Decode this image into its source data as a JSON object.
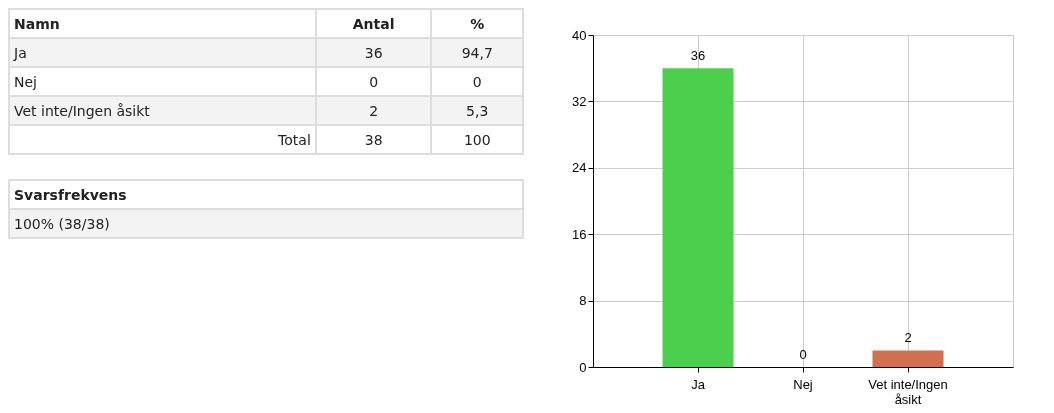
{
  "chart_data": [
    {
      "type": "other",
      "annotations": [
        "Namn",
        "Antal",
        "%",
        "Ja",
        "36",
        "94,7",
        "Nej",
        "0",
        "0",
        "Vet inte/Ingen åsikt",
        "2",
        "5,3",
        "Total",
        "38",
        "100",
        "Svarsfrekvens",
        "100% (38/38)"
      ]
    },
    {
      "type": "bar",
      "categories": [
        "Ja",
        "Nej",
        "Vet inte/Ingen åsikt"
      ],
      "values": [
        36,
        0,
        2
      ],
      "colors": [
        "#4ccf4c",
        "#4ccf4c",
        "#d0704f"
      ],
      "ylim": [
        0,
        40
      ],
      "yticks": [
        0,
        8,
        16,
        24,
        32,
        40
      ],
      "grid": true,
      "data_labels": true
    }
  ]
}
